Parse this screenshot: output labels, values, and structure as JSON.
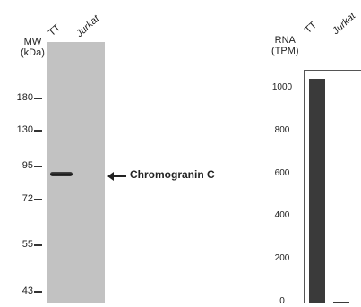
{
  "western_blot": {
    "mw_header": [
      "MW",
      "(kDa)"
    ],
    "lanes": [
      "TT",
      "Jurkat"
    ],
    "markers": [
      "180",
      "130",
      "95",
      "72",
      "55",
      "43"
    ],
    "band_label": "Chromogranin C",
    "band_label_arrow": "←"
  },
  "rna_panel": {
    "header": [
      "RNA",
      "(TPM)"
    ],
    "lanes": [
      "TT",
      "Jurkat"
    ]
  },
  "chart_data": {
    "type": "bar",
    "title": "",
    "ylabel": "RNA (TPM)",
    "categories": [
      "TT",
      "Jurkat"
    ],
    "values": [
      1040,
      0
    ],
    "yticks": [
      0,
      200,
      400,
      600,
      800,
      1000
    ],
    "ylim": [
      0,
      1050
    ],
    "bar_color": "#3a3a3a"
  }
}
